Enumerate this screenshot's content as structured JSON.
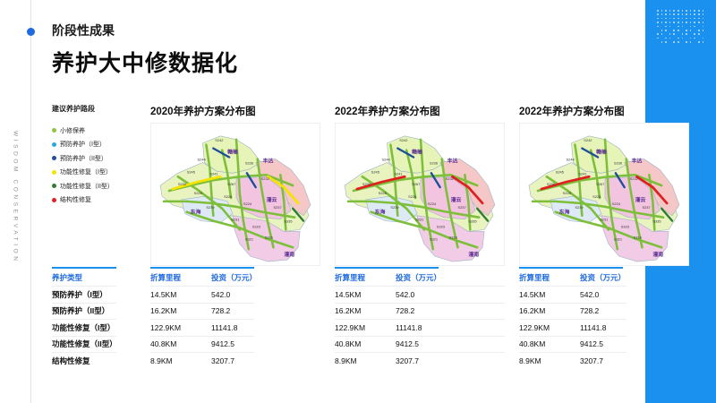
{
  "header": {
    "section_label": "阶段性成果",
    "title": "养护大中修数据化",
    "side_text": "WISDOM CONSERVATION"
  },
  "legend": {
    "title": "建议养护路段",
    "items": [
      {
        "label": "小修保养",
        "color": "#8cc63f"
      },
      {
        "label": "预防养护（I型）",
        "color": "#29a8e0"
      },
      {
        "label": "预防养护（II型）",
        "color": "#1f4e9a"
      },
      {
        "label": "功能性修复（I型）",
        "color": "#f5e300"
      },
      {
        "label": "功能性修复（II型）",
        "color": "#2e7d32"
      },
      {
        "label": "结构性修复",
        "color": "#e02020"
      }
    ]
  },
  "maps": [
    {
      "title": "2020年养护方案分布图",
      "place_labels": [
        {
          "text": "赣榆"
        },
        {
          "text": "丰达"
        },
        {
          "text": "灌云"
        },
        {
          "text": "东海"
        },
        {
          "text": "灌南"
        }
      ],
      "road_codes": [
        "S242",
        "S244",
        "S245",
        "S241",
        "S267",
        "S236",
        "S232",
        "S230",
        "S228",
        "S226",
        "S224",
        "S237",
        "S239",
        "S231",
        "S323",
        "S316",
        "S335",
        "S321"
      ],
      "highlight_color": "#f5e300"
    },
    {
      "title": "2022年养护方案分布图",
      "place_labels": [
        {
          "text": "赣榆"
        },
        {
          "text": "丰达"
        },
        {
          "text": "灌云"
        },
        {
          "text": "东海"
        },
        {
          "text": "灌南"
        }
      ],
      "road_codes": [
        "S242",
        "S244",
        "S245",
        "S241",
        "S267",
        "S236",
        "S232",
        "S230",
        "S228",
        "S226",
        "S224",
        "S237",
        "S239",
        "S231",
        "S323",
        "S316",
        "S335",
        "S321"
      ],
      "highlight_color": "#e02020"
    },
    {
      "title": "2022年养护方案分布图",
      "place_labels": [
        {
          "text": "赣榆"
        },
        {
          "text": "丰达"
        },
        {
          "text": "灌云"
        },
        {
          "text": "东海"
        },
        {
          "text": "灌南"
        }
      ],
      "road_codes": [
        "S242",
        "S244",
        "S245",
        "S241",
        "S267",
        "S236",
        "S232",
        "S230",
        "S228",
        "S226",
        "S224",
        "S237",
        "S239",
        "S231",
        "S323",
        "S316",
        "S335",
        "S321"
      ],
      "highlight_color": "#e02020"
    }
  ],
  "table": {
    "type_header": "养护类型",
    "types": [
      "预防养护（I型）",
      "预防养护（II型）",
      "功能性修复（I型）",
      "功能性修复（II型）",
      "结构性修复"
    ],
    "groups": [
      {
        "col_mileage": "折算里程",
        "col_invest": "投资（万元）",
        "rows": [
          {
            "mileage": "14.5KM",
            "invest": "542.0"
          },
          {
            "mileage": "16.2KM",
            "invest": "728.2"
          },
          {
            "mileage": "122.9KM",
            "invest": "11141.8"
          },
          {
            "mileage": "40.8KM",
            "invest": "9412.5"
          },
          {
            "mileage": "8.9KM",
            "invest": "3207.7"
          }
        ]
      },
      {
        "col_mileage": "折算里程",
        "col_invest": "投资（万元）",
        "rows": [
          {
            "mileage": "14.5KM",
            "invest": "542.0"
          },
          {
            "mileage": "16.2KM",
            "invest": "728.2"
          },
          {
            "mileage": "122.9KM",
            "invest": "11141.8"
          },
          {
            "mileage": "40.8KM",
            "invest": "9412.5"
          },
          {
            "mileage": "8.9KM",
            "invest": "3207.7"
          }
        ]
      },
      {
        "col_mileage": "折算里程",
        "col_invest": "投资（万元）",
        "rows": [
          {
            "mileage": "14.5KM",
            "invest": "542.0"
          },
          {
            "mileage": "16.2KM",
            "invest": "728.2"
          },
          {
            "mileage": "122.9KM",
            "invest": "11141.8"
          },
          {
            "mileage": "40.8KM",
            "invest": "9412.5"
          },
          {
            "mileage": "8.9KM",
            "invest": "3207.7"
          }
        ]
      }
    ]
  }
}
